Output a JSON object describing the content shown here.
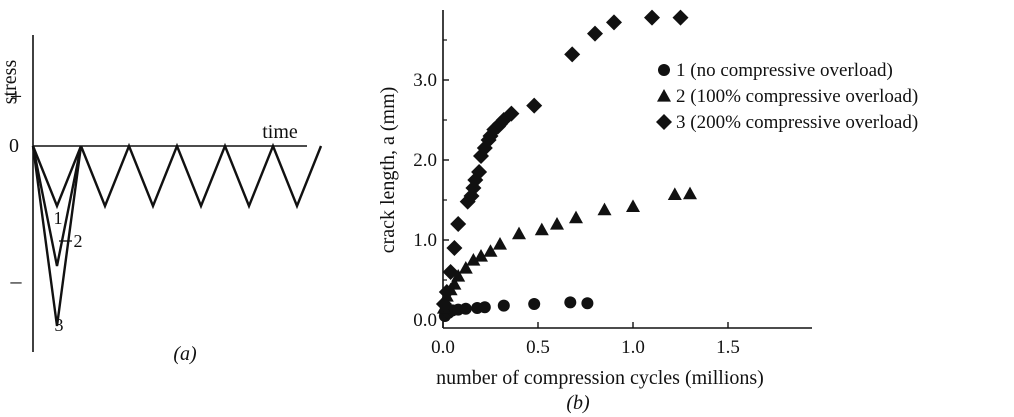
{
  "panel_a": {
    "caption": "(a)",
    "y_axis_label": "stress",
    "plus_sign": "+",
    "minus_sign": "–",
    "zero_label": "0",
    "x_axis_label": "time",
    "curve_labels": [
      "1",
      "2",
      "3"
    ]
  },
  "panel_b": {
    "caption": "(b)"
  },
  "chart_data": [
    {
      "type": "line",
      "panel": "a",
      "xlabel": "time",
      "ylabel": "stress",
      "series": [
        {
          "name": "1",
          "overload": 1.0
        },
        {
          "name": "2",
          "overload": 2.0
        },
        {
          "name": "3",
          "overload": 3.0
        }
      ],
      "cycle_amplitude": 1.0,
      "cycles": 5
    },
    {
      "type": "scatter",
      "panel": "b",
      "xlabel": "number of compression cycles (millions)",
      "ylabel": "crack length, a (mm)",
      "xlim": [
        0,
        1.85
      ],
      "ylim": [
        0,
        3.95
      ],
      "xticks": [
        "0.0",
        "0.5",
        "1.0",
        "1.5"
      ],
      "yticks": [
        "0.0",
        "1.0",
        "2.0",
        "3.0"
      ],
      "xtick_values": [
        0.0,
        0.5,
        1.0,
        1.5
      ],
      "ytick_values": [
        0.0,
        1.0,
        2.0,
        3.0
      ],
      "legend_position": "top-right",
      "series": [
        {
          "name": "1 (no compressive overload)",
          "marker": "circle",
          "x": [
            0.01,
            0.03,
            0.05,
            0.08,
            0.12,
            0.18,
            0.22,
            0.32,
            0.48,
            0.67,
            0.76
          ],
          "y": [
            0.05,
            0.09,
            0.12,
            0.13,
            0.14,
            0.15,
            0.16,
            0.18,
            0.2,
            0.22,
            0.21
          ]
        },
        {
          "name": "2 (100% compressive overload)",
          "marker": "triangle",
          "x": [
            0.005,
            0.02,
            0.04,
            0.06,
            0.08,
            0.12,
            0.16,
            0.2,
            0.25,
            0.3,
            0.4,
            0.52,
            0.6,
            0.7,
            0.85,
            1.0,
            1.22,
            1.3
          ],
          "y": [
            0.15,
            0.3,
            0.38,
            0.45,
            0.55,
            0.65,
            0.75,
            0.8,
            0.86,
            0.95,
            1.08,
            1.13,
            1.2,
            1.28,
            1.38,
            1.42,
            1.57,
            1.58
          ]
        },
        {
          "name": "3 (200% compressive overload)",
          "marker": "diamond",
          "x": [
            0.005,
            0.02,
            0.04,
            0.06,
            0.08,
            0.13,
            0.15,
            0.16,
            0.17,
            0.19,
            0.2,
            0.22,
            0.24,
            0.25,
            0.27,
            0.29,
            0.3,
            0.32,
            0.36,
            0.48,
            0.68,
            0.8,
            0.9,
            1.1,
            1.25
          ],
          "y": [
            0.2,
            0.35,
            0.6,
            0.9,
            1.2,
            1.48,
            1.55,
            1.65,
            1.75,
            1.85,
            2.05,
            2.15,
            2.25,
            2.3,
            2.38,
            2.42,
            2.45,
            2.5,
            2.58,
            2.68,
            3.32,
            3.58,
            3.72,
            3.78,
            3.78
          ]
        }
      ]
    }
  ]
}
